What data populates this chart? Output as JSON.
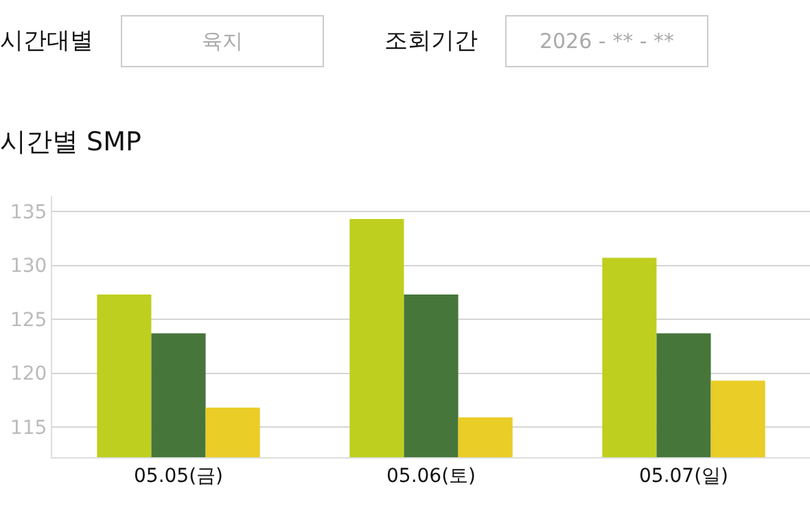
{
  "chart_data": {
    "type": "bar",
    "title": "시간별 SMP",
    "annotations": [
      "시간대별",
      "육지",
      "조회기간",
      "2026 - ** - **"
    ],
    "categories": [
      "05.05(금)",
      "05.06(토)",
      "05.07(일)"
    ],
    "series": [
      {
        "color": "#bfcf1f",
        "values": [
          127.3,
          134.3,
          130.7
        ]
      },
      {
        "color": "#47763b",
        "values": [
          123.7,
          127.3,
          123.7
        ]
      },
      {
        "color": "#eacd26",
        "values": [
          116.8,
          115.9,
          119.3
        ]
      }
    ],
    "ylim": [
      112.2,
      136.4
    ],
    "yticks": [
      115,
      120,
      125,
      130,
      135
    ],
    "grid": "y",
    "legend": false
  }
}
